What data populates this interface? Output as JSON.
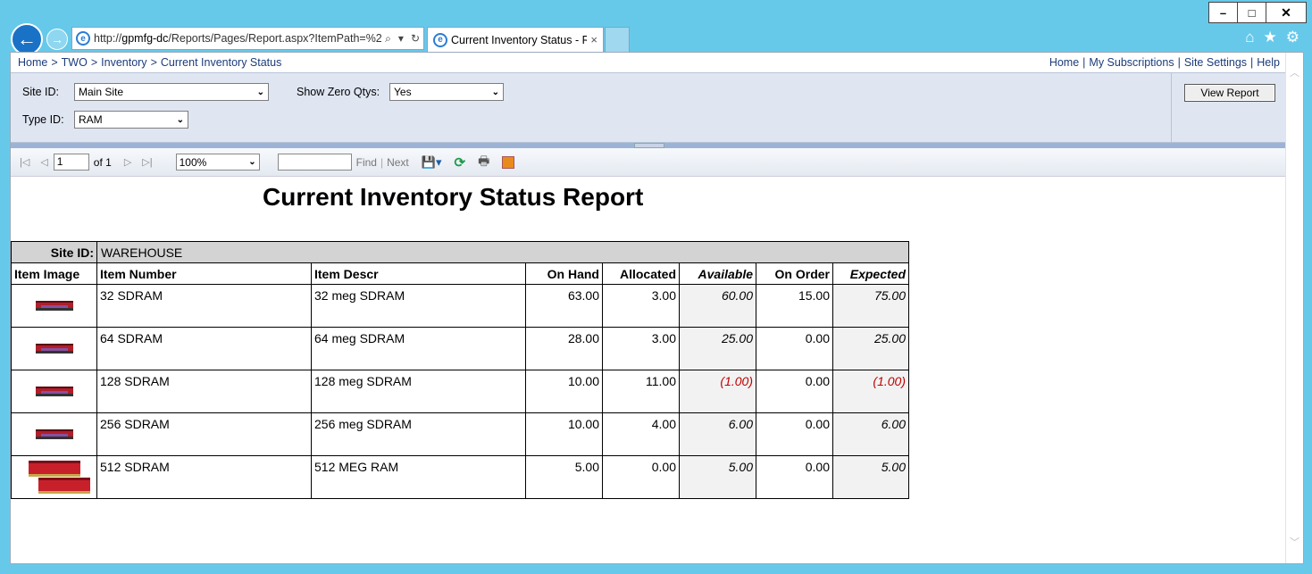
{
  "browser": {
    "url_prefix": "http://",
    "url_host": "gpmfg-dc",
    "url_path": "/Reports/Pages/Report.aspx?ItemPath=%2",
    "tab_title": "Current Inventory Status - R...",
    "tab_close": "×",
    "win_min": "–",
    "win_max": "□",
    "win_close": "✕",
    "home_icon": "⌂",
    "fav_icon": "★",
    "settings_icon": "⚙"
  },
  "breadcrumb": {
    "items": [
      "Home",
      "TWO",
      "Inventory",
      "Current Inventory Status"
    ],
    "separator": ">"
  },
  "top_links": [
    "Home",
    "My Subscriptions",
    "Site Settings",
    "Help"
  ],
  "params": {
    "site_id_label": "Site ID:",
    "site_id_value": "Main Site",
    "show_zero_label": "Show Zero Qtys:",
    "show_zero_value": "Yes",
    "type_id_label": "Type ID:",
    "type_id_value": "RAM",
    "view_report": "View Report"
  },
  "toolbar": {
    "page": "1",
    "of_pages": "of 1",
    "zoom": "100%",
    "find": "Find",
    "next": "Next"
  },
  "report": {
    "title": "Current Inventory Status Report",
    "site_label": "Site ID:",
    "site_value": "WAREHOUSE",
    "headers": {
      "image": "Item Image",
      "number": "Item Number",
      "descr": "Item Descr",
      "on_hand": "On Hand",
      "allocated": "Allocated",
      "available": "Available",
      "on_order": "On Order",
      "expected": "Expected"
    },
    "rows": [
      {
        "number": "32 SDRAM",
        "descr": "32 meg SDRAM",
        "on_hand": "63.00",
        "allocated": "3.00",
        "available": "60.00",
        "on_order": "15.00",
        "expected": "75.00"
      },
      {
        "number": "64 SDRAM",
        "descr": "64 meg SDRAM",
        "on_hand": "28.00",
        "allocated": "3.00",
        "available": "25.00",
        "on_order": "0.00",
        "expected": "25.00"
      },
      {
        "number": "128 SDRAM",
        "descr": "128 meg SDRAM",
        "on_hand": "10.00",
        "allocated": "11.00",
        "available": "(1.00)",
        "on_order": "0.00",
        "expected": "(1.00)"
      },
      {
        "number": "256 SDRAM",
        "descr": "256 meg SDRAM",
        "on_hand": "10.00",
        "allocated": "4.00",
        "available": "6.00",
        "on_order": "0.00",
        "expected": "6.00"
      },
      {
        "number": "512 SDRAM",
        "descr": "512 MEG RAM",
        "on_hand": "5.00",
        "allocated": "0.00",
        "available": "5.00",
        "on_order": "0.00",
        "expected": "5.00"
      }
    ],
    "negative_color": "#c00000"
  }
}
